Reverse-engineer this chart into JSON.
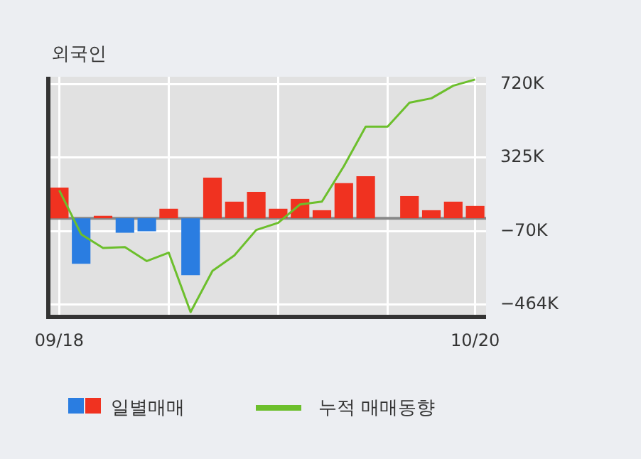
{
  "chart_data": {
    "type": "bar",
    "title": "외국인",
    "categories": [
      "09/18",
      null,
      null,
      null,
      null,
      null,
      null,
      null,
      null,
      null,
      null,
      null,
      null,
      null,
      null,
      null,
      null,
      null,
      null,
      "10/20"
    ],
    "series": [
      {
        "name": "일별매매",
        "values": [
          165000,
          -245000,
          13000,
          -78000,
          -70000,
          51000,
          -306000,
          218000,
          89000,
          142000,
          51000,
          104000,
          43000,
          188000,
          226000,
          0,
          119000,
          43000,
          89000,
          66000
        ],
        "colors": [
          "#f03220",
          "#2a7de1",
          "#f03220",
          "#2a7de1",
          "#2a7de1",
          "#f03220",
          "#2a7de1",
          "#f03220",
          "#f03220",
          "#f03220",
          "#f03220",
          "#f03220",
          "#f03220",
          "#f03220",
          "#f03220",
          "#f03220",
          "#f03220",
          "#f03220",
          "#f03220",
          "#f03220"
        ]
      },
      {
        "name": "누적 매매동향",
        "type": "line",
        "color": "#6cbf2c",
        "values": [
          150000,
          -86000,
          -160000,
          -155000,
          -230000,
          -185000,
          -504000,
          -283000,
          -200000,
          -63000,
          -25000,
          74000,
          89000,
          279000,
          492000,
          492000,
          621000,
          644000,
          712000,
          745000
        ]
      }
    ],
    "ylim": [
      -530000,
      760000
    ],
    "yticks": [
      {
        "value": 720000,
        "label": "720K"
      },
      {
        "value": 325000,
        "label": "325K"
      },
      {
        "value": -70000,
        "label": "−70K"
      },
      {
        "value": -464000,
        "label": "−464K"
      }
    ],
    "ref_lines": [
      {
        "axis": "y",
        "value": 0,
        "color": "#888888"
      }
    ],
    "grid": true,
    "legend": "bottom",
    "marker": "none",
    "line_style": "solid"
  }
}
